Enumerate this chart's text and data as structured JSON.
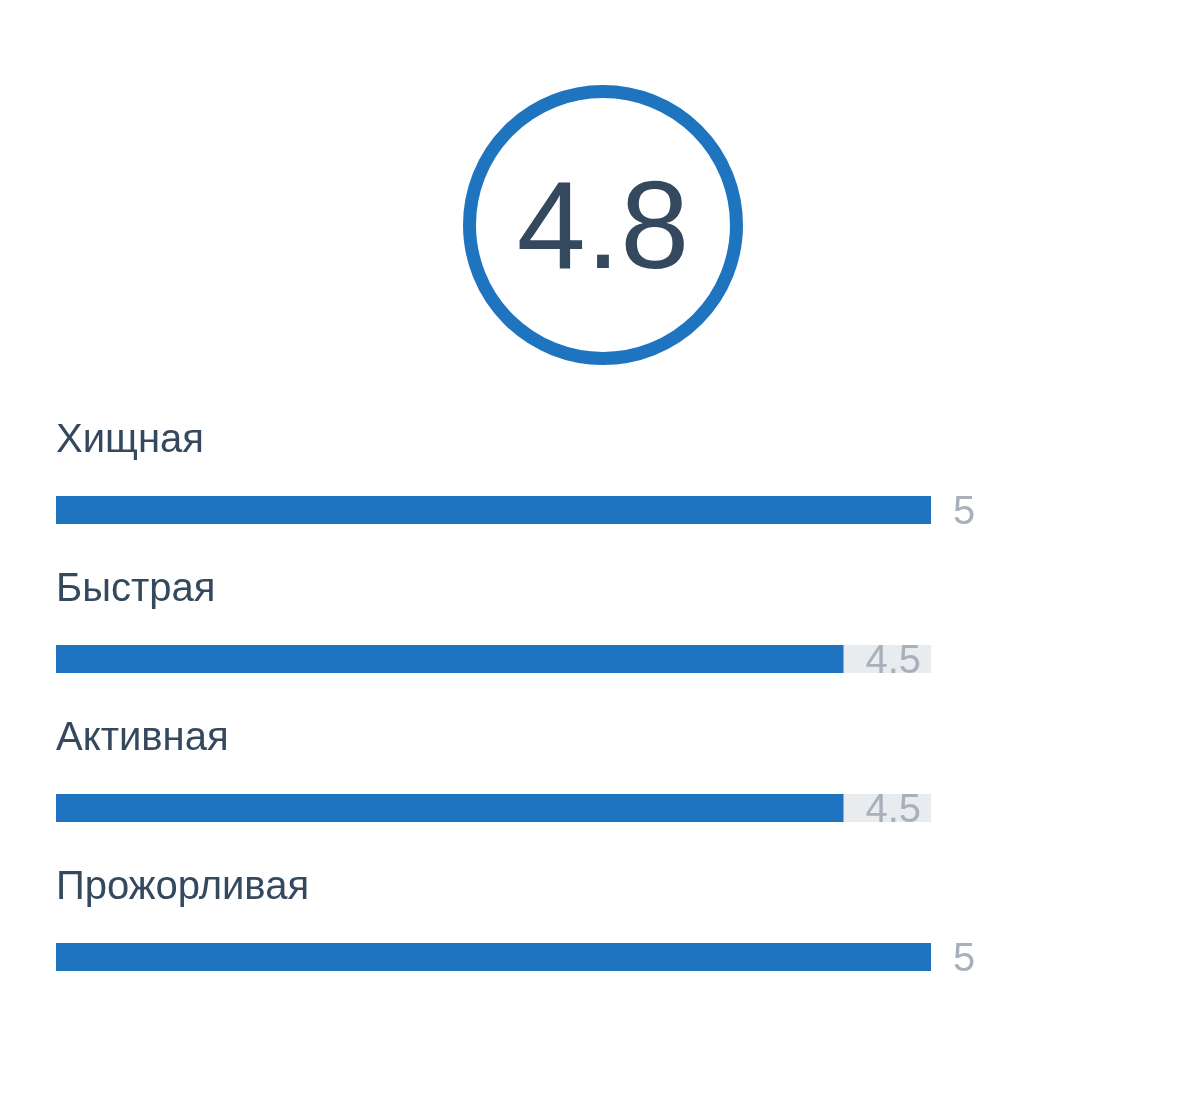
{
  "chart_data": {
    "type": "bar",
    "orientation": "horizontal",
    "title": "4.8",
    "categories": [
      "Хищная",
      "Быстрая",
      "Активная",
      "Прожорливая"
    ],
    "values": [
      5,
      4.5,
      4.5,
      5
    ],
    "color": "#1f74c0",
    "xlim": [
      0,
      5
    ],
    "data_labels": true,
    "tick_labels": false,
    "grid": false
  }
}
